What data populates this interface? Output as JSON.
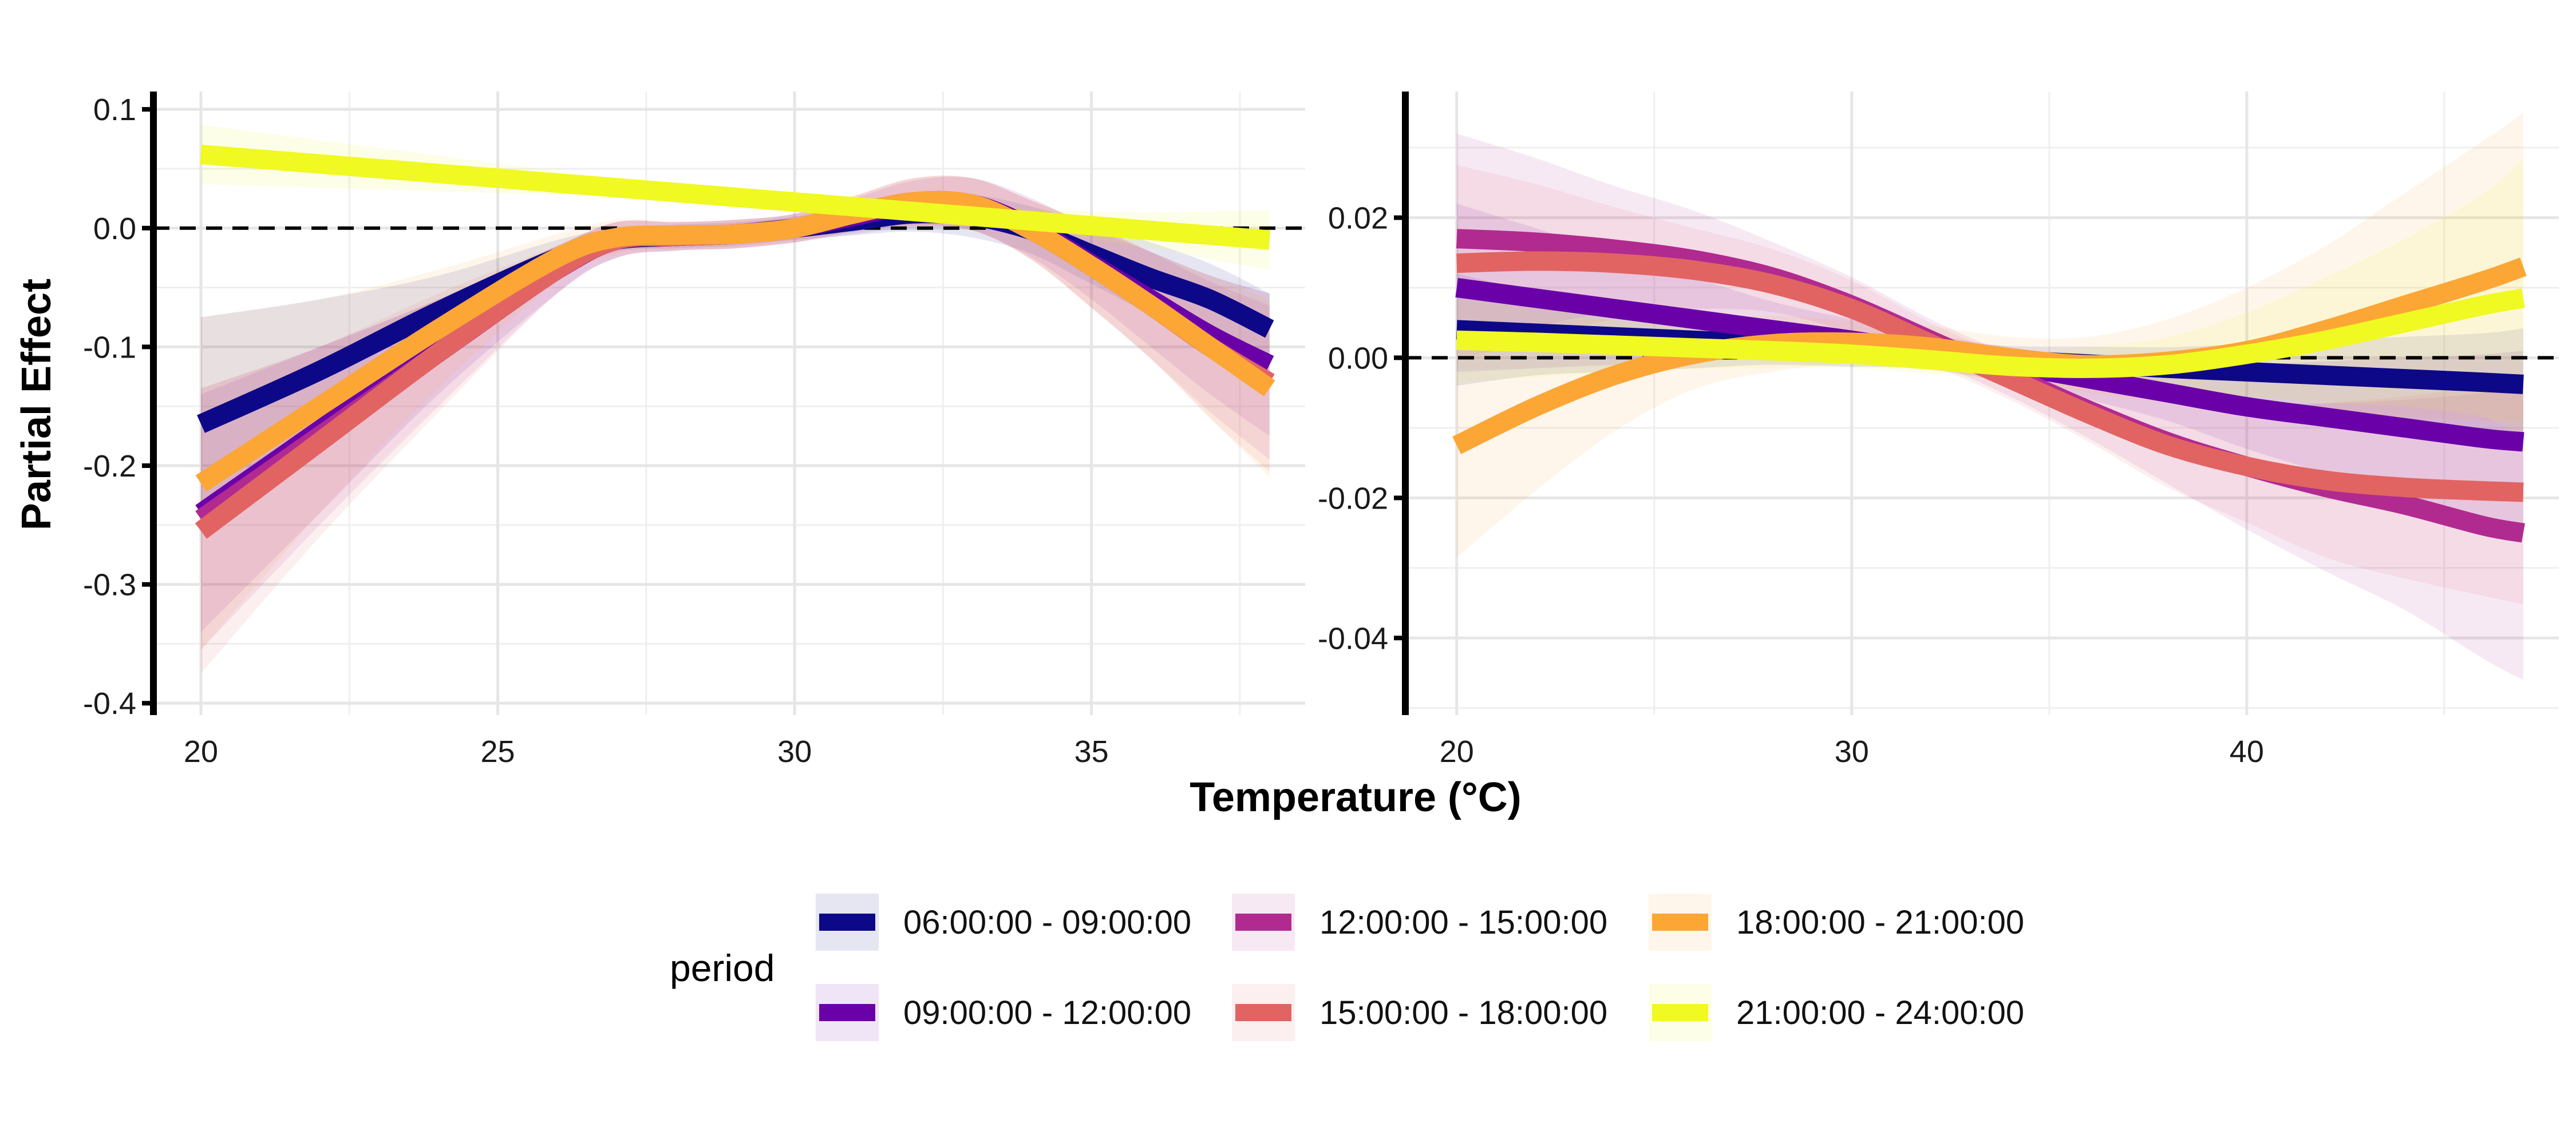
{
  "chart_data": [
    {
      "type": "line",
      "panel": "left",
      "xlabel": "",
      "ylabel": "Partial Effect",
      "xlim": [
        19.2,
        38.6
      ],
      "ylim": [
        -0.41,
        0.115
      ],
      "xticks": [
        20,
        25,
        30,
        35
      ],
      "xtick_labels": [
        "20",
        "25",
        "30",
        "35"
      ],
      "yticks": [
        0.1,
        0.0,
        -0.1,
        -0.2,
        -0.3,
        -0.4
      ],
      "ytick_labels": [
        "0.1",
        "0.0",
        "-0.1",
        "-0.2",
        "-0.3",
        "-0.4"
      ],
      "x_minor_grid": [
        22.5,
        27.5,
        32.5,
        37.5
      ],
      "y_minor_grid": [
        0.05,
        -0.05,
        -0.15,
        -0.25,
        -0.35
      ],
      "reference_line_y": 0,
      "grid": true,
      "x": [
        20,
        22,
        24,
        26,
        27,
        28,
        29,
        30,
        31,
        32,
        33,
        34,
        35,
        36,
        37,
        38
      ],
      "series": [
        {
          "name": "06:00:00 - 09:00:00",
          "values": [
            -0.165,
            -0.12,
            -0.07,
            -0.025,
            -0.01,
            -0.007,
            -0.005,
            0.0,
            0.006,
            0.012,
            0.01,
            -0.002,
            -0.022,
            -0.042,
            -0.06,
            -0.085
          ],
          "ci": [
            0.09,
            0.06,
            0.03,
            0.015,
            0.01,
            0.01,
            0.01,
            0.01,
            0.012,
            0.015,
            0.018,
            0.02,
            0.025,
            0.03,
            0.03,
            0.03
          ]
        },
        {
          "name": "09:00:00 - 12:00:00",
          "values": [
            -0.24,
            -0.17,
            -0.1,
            -0.035,
            -0.01,
            -0.007,
            -0.005,
            0.0,
            0.01,
            0.02,
            0.02,
            0.0,
            -0.03,
            -0.06,
            -0.09,
            -0.115
          ],
          "ci": [
            0.1,
            0.07,
            0.04,
            0.02,
            0.015,
            0.012,
            0.012,
            0.012,
            0.015,
            0.02,
            0.022,
            0.025,
            0.03,
            0.04,
            0.05,
            0.06
          ]
        },
        {
          "name": "12:00:00 - 15:00:00",
          "values": [
            -0.245,
            -0.175,
            -0.105,
            -0.035,
            -0.01,
            -0.007,
            -0.005,
            0.0,
            0.012,
            0.022,
            0.02,
            -0.002,
            -0.032,
            -0.065,
            -0.1,
            -0.13
          ],
          "ci": [
            0.11,
            0.075,
            0.045,
            0.02,
            0.015,
            0.012,
            0.012,
            0.012,
            0.015,
            0.02,
            0.022,
            0.025,
            0.035,
            0.045,
            0.055,
            0.065
          ]
        },
        {
          "name": "15:00:00 - 18:00:00",
          "values": [
            -0.255,
            -0.18,
            -0.105,
            -0.035,
            -0.01,
            -0.007,
            -0.005,
            0.0,
            0.012,
            0.022,
            0.02,
            -0.002,
            -0.032,
            -0.065,
            -0.1,
            -0.13
          ],
          "ci": [
            0.12,
            0.08,
            0.05,
            0.02,
            0.015,
            0.012,
            0.012,
            0.012,
            0.015,
            0.02,
            0.022,
            0.025,
            0.035,
            0.045,
            0.06,
            0.075
          ]
        },
        {
          "name": "18:00:00 - 21:00:00",
          "values": [
            -0.215,
            -0.15,
            -0.085,
            -0.025,
            -0.008,
            -0.006,
            -0.005,
            0.0,
            0.012,
            0.022,
            0.02,
            -0.002,
            -0.032,
            -0.065,
            -0.1,
            -0.135
          ],
          "ci": [
            0.14,
            0.09,
            0.05,
            0.02,
            0.015,
            0.012,
            0.012,
            0.012,
            0.015,
            0.02,
            0.022,
            0.025,
            0.035,
            0.045,
            0.06,
            0.075
          ]
        },
        {
          "name": "21:00:00 - 24:00:00",
          "values": [
            0.062,
            0.054,
            0.046,
            0.038,
            0.034,
            0.03,
            0.026,
            0.022,
            0.018,
            0.014,
            0.01,
            0.006,
            0.002,
            -0.002,
            -0.006,
            -0.01
          ],
          "ci": [
            0.025,
            0.02,
            0.015,
            0.01,
            0.008,
            0.006,
            0.005,
            0.005,
            0.005,
            0.006,
            0.008,
            0.01,
            0.012,
            0.015,
            0.02,
            0.025
          ]
        }
      ]
    },
    {
      "type": "line",
      "panel": "right",
      "xlabel": "",
      "ylabel": "",
      "xlim": [
        18.7,
        47.9
      ],
      "ylim": [
        -0.051,
        0.038
      ],
      "xticks": [
        20,
        30,
        40
      ],
      "xtick_labels": [
        "20",
        "30",
        "40"
      ],
      "yticks": [
        0.02,
        0.0,
        -0.02,
        -0.04
      ],
      "ytick_labels": [
        "0.02",
        "0.00",
        "-0.02",
        "-0.04"
      ],
      "x_minor_grid": [
        25,
        35,
        45
      ],
      "y_minor_grid": [
        0.03,
        0.01,
        -0.01,
        -0.03,
        -0.05
      ],
      "reference_line_y": 0,
      "grid": true,
      "x": [
        20,
        22,
        24,
        26,
        28,
        30,
        32,
        34,
        36,
        38,
        40,
        42,
        44,
        46,
        47
      ],
      "series": [
        {
          "name": "06:00:00 - 09:00:00",
          "values": [
            0.004,
            0.0035,
            0.003,
            0.0025,
            0.002,
            0.0012,
            0.0005,
            -0.0003,
            -0.0009,
            -0.0015,
            -0.002,
            -0.0025,
            -0.003,
            -0.0035,
            -0.0038
          ],
          "ci": [
            0.008,
            0.006,
            0.005,
            0.004,
            0.003,
            0.0025,
            0.002,
            0.002,
            0.0025,
            0.003,
            0.004,
            0.005,
            0.006,
            0.007,
            0.008
          ]
        },
        {
          "name": "09:00:00 - 12:00:00",
          "values": [
            0.01,
            0.0085,
            0.007,
            0.0055,
            0.004,
            0.0025,
            0.0008,
            -0.001,
            -0.003,
            -0.005,
            -0.007,
            -0.0085,
            -0.01,
            -0.0115,
            -0.012
          ],
          "ci": [
            0.012,
            0.01,
            0.008,
            0.006,
            0.004,
            0.003,
            0.0025,
            0.0025,
            0.003,
            0.004,
            0.006,
            0.008,
            0.01,
            0.012,
            0.013
          ]
        },
        {
          "name": "12:00:00 - 15:00:00",
          "values": [
            0.017,
            0.0165,
            0.0155,
            0.014,
            0.0115,
            0.0075,
            0.0025,
            -0.0025,
            -0.0075,
            -0.012,
            -0.0155,
            -0.0185,
            -0.021,
            -0.024,
            -0.025
          ],
          "ci": [
            0.015,
            0.012,
            0.009,
            0.007,
            0.005,
            0.004,
            0.003,
            0.003,
            0.004,
            0.006,
            0.009,
            0.012,
            0.015,
            0.019,
            0.021
          ]
        },
        {
          "name": "15:00:00 - 18:00:00",
          "values": [
            0.0135,
            0.0138,
            0.0135,
            0.0125,
            0.0105,
            0.007,
            0.002,
            -0.003,
            -0.008,
            -0.0125,
            -0.0155,
            -0.0175,
            -0.0185,
            -0.019,
            -0.0192
          ],
          "ci": [
            0.014,
            0.011,
            0.008,
            0.006,
            0.005,
            0.004,
            0.003,
            0.003,
            0.004,
            0.006,
            0.008,
            0.011,
            0.013,
            0.015,
            0.016
          ]
        },
        {
          "name": "18:00:00 - 21:00:00",
          "values": [
            -0.0125,
            -0.007,
            -0.0025,
            0.0005,
            0.002,
            0.0022,
            0.0015,
            0.0,
            -0.001,
            -0.0005,
            0.001,
            0.004,
            0.0075,
            0.011,
            0.013
          ],
          "ci": [
            0.016,
            0.012,
            0.008,
            0.005,
            0.004,
            0.003,
            0.003,
            0.003,
            0.004,
            0.006,
            0.009,
            0.012,
            0.016,
            0.02,
            0.022
          ]
        },
        {
          "name": "21:00:00 - 24:00:00",
          "values": [
            0.0025,
            0.0022,
            0.0018,
            0.0014,
            0.001,
            0.0005,
            -0.0003,
            -0.0012,
            -0.0015,
            -0.001,
            0.0005,
            0.0025,
            0.005,
            0.0075,
            0.0085
          ],
          "ci": [
            0.006,
            0.005,
            0.004,
            0.003,
            0.0025,
            0.002,
            0.002,
            0.002,
            0.003,
            0.004,
            0.006,
            0.009,
            0.012,
            0.016,
            0.02
          ]
        }
      ]
    }
  ],
  "shared": {
    "xlabel": "Temperature (°C)",
    "ylabel": "Partial Effect"
  },
  "legend": {
    "title": "period",
    "placement": "bottom",
    "items": [
      {
        "label": "06:00:00 - 09:00:00",
        "color": "#0d0887"
      },
      {
        "label": "09:00:00 - 12:00:00",
        "color": "#6a00a8"
      },
      {
        "label": "12:00:00 - 15:00:00",
        "color": "#b12a90"
      },
      {
        "label": "15:00:00 - 18:00:00",
        "color": "#e16462"
      },
      {
        "label": "18:00:00 - 21:00:00",
        "color": "#fca636"
      },
      {
        "label": "21:00:00 - 24:00:00",
        "color": "#f0f921"
      }
    ]
  },
  "colors": {
    "grid": "#e6e6e6",
    "axis": "#000000",
    "reference_line": "#000000"
  }
}
